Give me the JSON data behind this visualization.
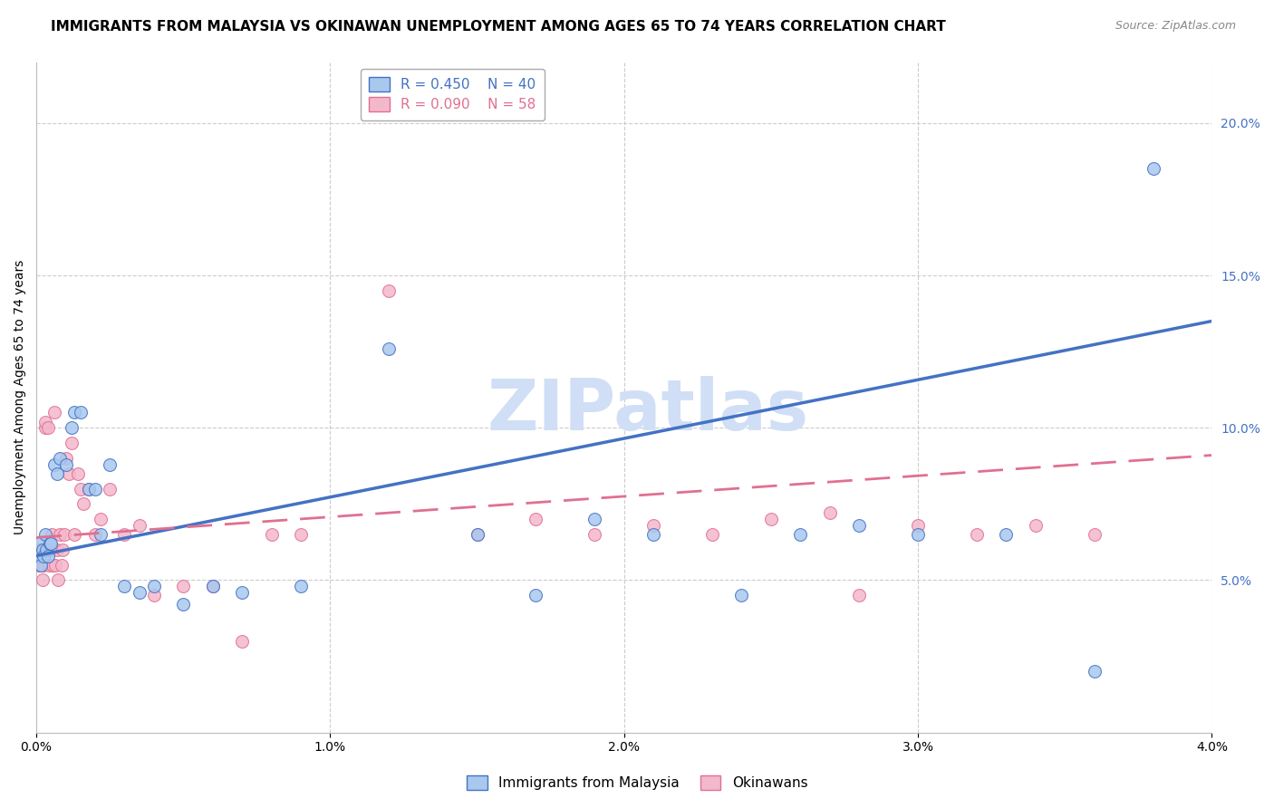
{
  "title": "IMMIGRANTS FROM MALAYSIA VS OKINAWAN UNEMPLOYMENT AMONG AGES 65 TO 74 YEARS CORRELATION CHART",
  "source": "Source: ZipAtlas.com",
  "ylabel": "Unemployment Among Ages 65 to 74 years",
  "xlim": [
    0.0,
    0.04
  ],
  "ylim": [
    0.0,
    0.22
  ],
  "xticks": [
    0.0,
    0.01,
    0.02,
    0.03,
    0.04
  ],
  "xticklabels": [
    "0.0%",
    "1.0%",
    "2.0%",
    "3.0%",
    "4.0%"
  ],
  "yticks_right": [
    0.05,
    0.1,
    0.15,
    0.2
  ],
  "ytick_labels_right": [
    "5.0%",
    "10.0%",
    "15.0%",
    "20.0%"
  ],
  "grid_color": "#cccccc",
  "watermark": "ZIPatlas",
  "legend1_r": "R = 0.450",
  "legend1_n": "N = 40",
  "legend2_r": "R = 0.090",
  "legend2_n": "N = 58",
  "series1_label": "Immigrants from Malaysia",
  "series2_label": "Okinawans",
  "color_blue": "#a8c8ee",
  "color_pink": "#f4b8cc",
  "color_blue_dark": "#4472c4",
  "color_pink_dark": "#e07090",
  "blue_scatter_x": [
    5e-05,
    0.0001,
    0.00015,
    0.0002,
    0.00025,
    0.0003,
    0.00035,
    0.0004,
    0.00045,
    0.0005,
    0.0006,
    0.0007,
    0.0008,
    0.001,
    0.0012,
    0.0013,
    0.0015,
    0.0018,
    0.002,
    0.0022,
    0.0025,
    0.003,
    0.0035,
    0.004,
    0.005,
    0.006,
    0.007,
    0.009,
    0.012,
    0.015,
    0.017,
    0.019,
    0.021,
    0.024,
    0.026,
    0.028,
    0.03,
    0.033,
    0.036,
    0.038
  ],
  "blue_scatter_y": [
    0.058,
    0.062,
    0.055,
    0.06,
    0.058,
    0.065,
    0.06,
    0.058,
    0.062,
    0.062,
    0.088,
    0.085,
    0.09,
    0.088,
    0.1,
    0.105,
    0.105,
    0.08,
    0.08,
    0.065,
    0.088,
    0.048,
    0.046,
    0.048,
    0.042,
    0.048,
    0.046,
    0.048,
    0.126,
    0.065,
    0.045,
    0.07,
    0.065,
    0.045,
    0.065,
    0.068,
    0.065,
    0.065,
    0.02,
    0.185
  ],
  "pink_scatter_x": [
    2e-05,
    5e-05,
    8e-05,
    0.0001,
    0.00012,
    0.00015,
    0.0002,
    0.00022,
    0.00025,
    0.0003,
    0.00032,
    0.00035,
    0.0004,
    0.00042,
    0.00045,
    0.0005,
    0.00052,
    0.00055,
    0.0006,
    0.00065,
    0.0007,
    0.00075,
    0.0008,
    0.00085,
    0.0009,
    0.00095,
    0.001,
    0.0011,
    0.0012,
    0.0013,
    0.0014,
    0.0015,
    0.0016,
    0.0018,
    0.002,
    0.0022,
    0.0025,
    0.003,
    0.0035,
    0.004,
    0.005,
    0.006,
    0.007,
    0.008,
    0.009,
    0.012,
    0.015,
    0.017,
    0.019,
    0.021,
    0.023,
    0.025,
    0.027,
    0.028,
    0.03,
    0.032,
    0.034,
    0.036
  ],
  "pink_scatter_y": [
    0.058,
    0.06,
    0.055,
    0.058,
    0.06,
    0.055,
    0.05,
    0.06,
    0.055,
    0.1,
    0.102,
    0.06,
    0.1,
    0.055,
    0.06,
    0.06,
    0.065,
    0.055,
    0.105,
    0.055,
    0.06,
    0.05,
    0.065,
    0.055,
    0.06,
    0.065,
    0.09,
    0.085,
    0.095,
    0.065,
    0.085,
    0.08,
    0.075,
    0.08,
    0.065,
    0.07,
    0.08,
    0.065,
    0.068,
    0.045,
    0.048,
    0.048,
    0.03,
    0.065,
    0.065,
    0.145,
    0.065,
    0.07,
    0.065,
    0.068,
    0.065,
    0.07,
    0.072,
    0.045,
    0.068,
    0.065,
    0.068,
    0.065
  ],
  "blue_line_x": [
    0.0,
    0.04
  ],
  "blue_line_y": [
    0.058,
    0.135
  ],
  "pink_line_x": [
    0.0,
    0.04
  ],
  "pink_line_y": [
    0.064,
    0.091
  ],
  "title_fontsize": 11,
  "source_fontsize": 9,
  "axis_label_fontsize": 10,
  "tick_fontsize": 10,
  "legend_fontsize": 11,
  "watermark_color": "#d0dff5",
  "watermark_fontsize": 56
}
